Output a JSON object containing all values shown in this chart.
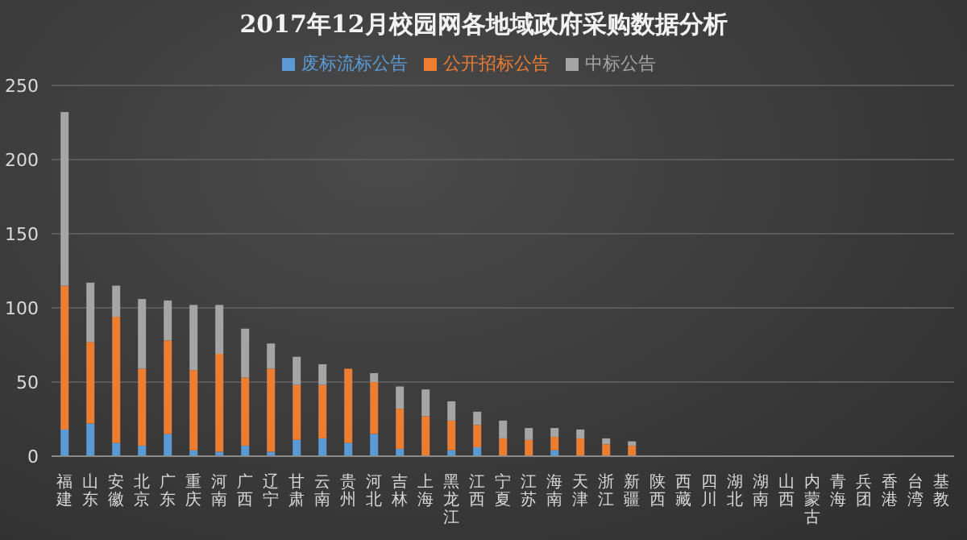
{
  "chart_data": {
    "type": "bar",
    "title": "2017年12月校园网各地域政府采购数据分析",
    "stacked": true,
    "categories": [
      "福建",
      "山东",
      "安徽",
      "北京",
      "广东",
      "重庆",
      "河南",
      "广西",
      "辽宁",
      "甘肃",
      "云南",
      "贵州",
      "河北",
      "吉林",
      "上海",
      "黑龙江",
      "江西",
      "宁夏",
      "江苏",
      "海南",
      "天津",
      "浙江",
      "新疆",
      "陕西",
      "西藏",
      "四川",
      "湖北",
      "湖南",
      "山西",
      "内蒙古",
      "青海",
      "兵团",
      "香港",
      "台湾",
      "基教"
    ],
    "series": [
      {
        "name": "废标流标公告",
        "color": "#5b9bd5",
        "values": [
          18,
          22,
          9,
          7,
          15,
          4,
          3,
          7,
          3,
          11,
          12,
          9,
          15,
          5,
          0,
          4,
          6,
          0,
          0,
          4,
          0,
          0,
          0,
          null,
          null,
          null,
          null,
          null,
          null,
          null,
          null,
          null,
          null,
          null,
          null
        ]
      },
      {
        "name": "公开招标公告",
        "color": "#ed7d31",
        "values": [
          97,
          55,
          85,
          52,
          63,
          54,
          66,
          46,
          56,
          37,
          36,
          50,
          35,
          27,
          27,
          20,
          15,
          12,
          11,
          9,
          12,
          8,
          7,
          null,
          null,
          null,
          null,
          null,
          null,
          null,
          null,
          null,
          null,
          null,
          null
        ]
      },
      {
        "name": "中标公告",
        "color": "#a5a5a5",
        "values": [
          117,
          40,
          21,
          47,
          27,
          44,
          33,
          33,
          17,
          19,
          14,
          0,
          6,
          15,
          18,
          13,
          9,
          12,
          8,
          6,
          6,
          4,
          3,
          null,
          null,
          null,
          null,
          null,
          null,
          null,
          null,
          null,
          null,
          null,
          null
        ]
      }
    ],
    "ylim": [
      0,
      250
    ],
    "yticks": [
      0,
      50,
      100,
      150,
      200,
      250
    ],
    "grid": "y",
    "legend": "top"
  }
}
